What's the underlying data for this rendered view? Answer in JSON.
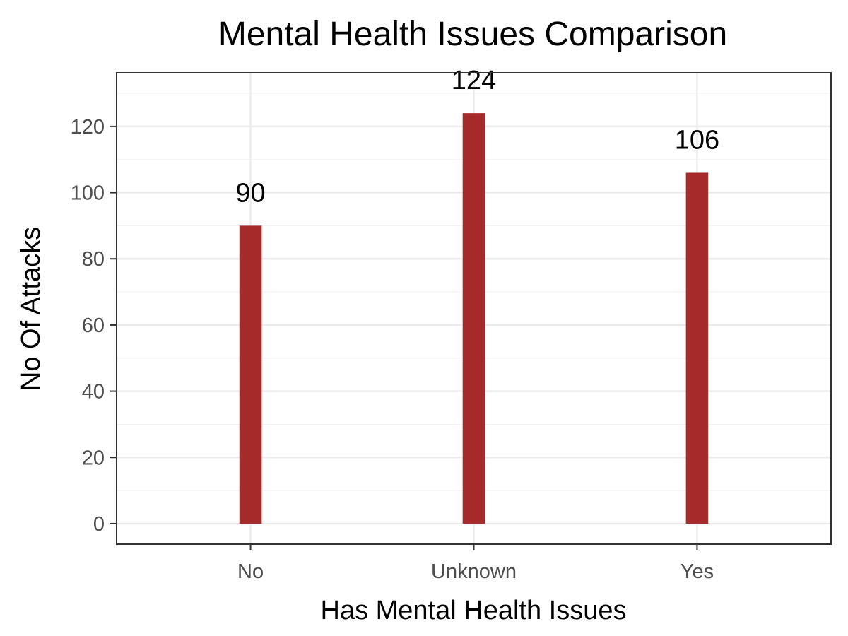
{
  "chart_data": {
    "type": "bar",
    "title": "Mental Health Issues Comparison",
    "xlabel": "Has Mental Health Issues",
    "ylabel": "No Of Attacks",
    "categories": [
      "No",
      "Unknown",
      "Yes"
    ],
    "values": [
      90,
      124,
      106
    ],
    "data_labels": [
      "90",
      "124",
      "106"
    ],
    "yticks": [
      0,
      20,
      40,
      60,
      80,
      100,
      120
    ],
    "ylim": [
      -6.2,
      136.2
    ],
    "grid": true,
    "legend": "none",
    "colors": {
      "bar": "#A52A2A",
      "panel_border": "#333333",
      "grid_major": "#EBEBEB",
      "grid_minor": "#F2F2F2",
      "background": "#FFFFFF"
    }
  }
}
